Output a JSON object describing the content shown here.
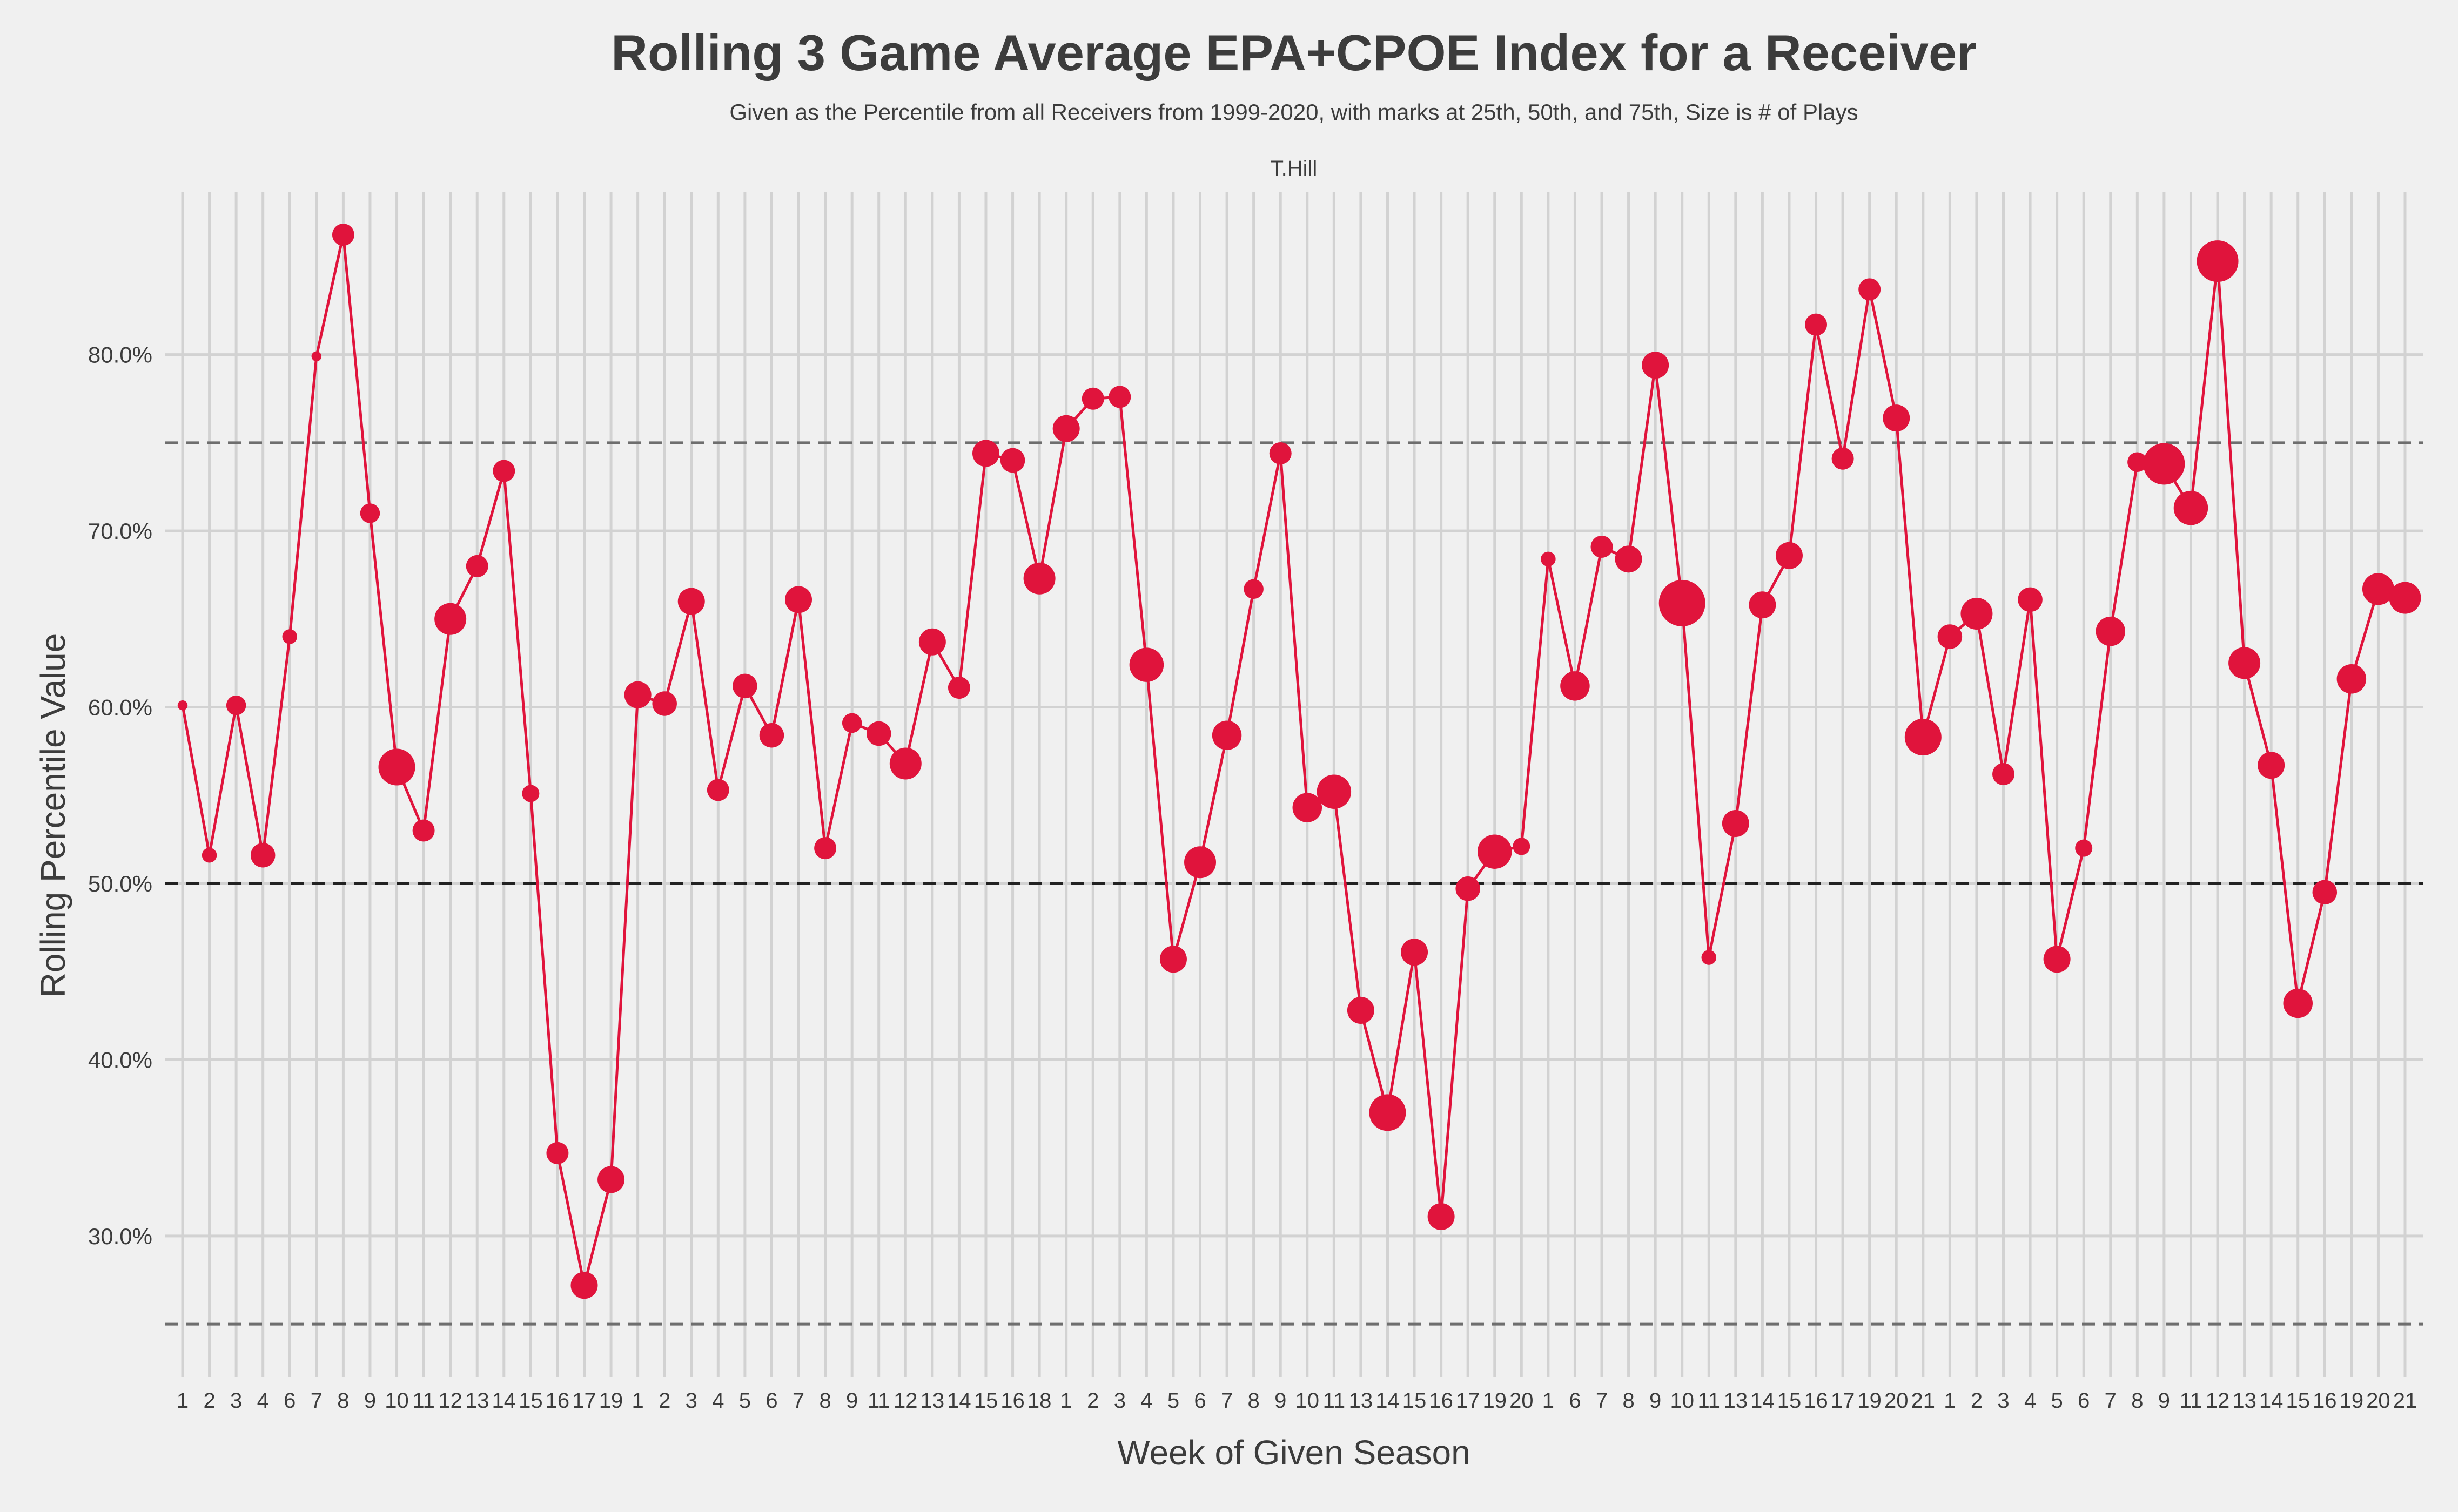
{
  "chart_data": {
    "type": "scatter",
    "title": "Rolling 3 Game Average EPA+CPOE Index for a Receiver",
    "subtitle": "Given as the Percentile from all Receivers from 1999-2020, with marks at 25th, 50th, and 75th, Size is # of Plays",
    "facet_label": "T.Hill",
    "xlabel": "Week of Given Season",
    "ylabel": "Rolling Percentile Value",
    "y_range": [
      0.22,
      0.897
    ],
    "y_ticks": [
      0.3,
      0.4,
      0.5,
      0.6,
      0.7,
      0.8
    ],
    "y_tick_labels": [
      "30.0%",
      "40.0%",
      "50.0%",
      "60.0%",
      "70.0%",
      "80.0%"
    ],
    "reference_lines": [
      0.25,
      0.5,
      0.75
    ],
    "grid": true,
    "colors": {
      "background": "#f0f0f0",
      "grid": "#d2d2d2",
      "series": "#e0143c",
      "reference_mid": "#222222",
      "reference_outer": "#6e6e6e",
      "text": "#3c3c3c"
    },
    "series": [
      {
        "x": [
          "1",
          "2",
          "3",
          "4",
          "6",
          "7",
          "8",
          "9",
          "10",
          "11",
          "12",
          "13",
          "14",
          "15",
          "16",
          "17",
          "19",
          "1",
          "2",
          "3",
          "4",
          "5",
          "6",
          "7",
          "8",
          "9",
          "11",
          "12",
          "13",
          "14",
          "15",
          "16",
          "18",
          "1",
          "2",
          "3",
          "4",
          "5",
          "6",
          "7",
          "8",
          "9",
          "10",
          "11",
          "13",
          "14",
          "15",
          "16",
          "17",
          "19",
          "20",
          "1",
          "6",
          "7",
          "8",
          "9",
          "10",
          "11",
          "13",
          "14",
          "15",
          "16",
          "17",
          "19",
          "20",
          "21",
          "1",
          "2",
          "3",
          "4",
          "5",
          "6",
          "7",
          "8",
          "9",
          "11",
          "12",
          "13",
          "14",
          "15",
          "16",
          "19",
          "20",
          "21"
        ],
        "y": [
          0.601,
          0.516,
          0.601,
          0.516,
          0.64,
          0.799,
          0.868,
          0.71,
          0.566,
          0.53,
          0.65,
          0.68,
          0.734,
          0.551,
          0.347,
          0.272,
          0.332,
          0.607,
          0.602,
          0.66,
          0.553,
          0.612,
          0.584,
          0.661,
          0.52,
          0.591,
          0.585,
          0.568,
          0.637,
          0.611,
          0.744,
          0.74,
          0.673,
          0.758,
          0.775,
          0.776,
          0.624,
          0.457,
          0.512,
          0.584,
          0.667,
          0.744,
          0.543,
          0.552,
          0.428,
          0.37,
          0.461,
          0.311,
          0.497,
          0.518,
          0.521,
          0.684,
          0.612,
          0.691,
          0.684,
          0.794,
          0.659,
          0.458,
          0.534,
          0.658,
          0.686,
          0.817,
          0.741,
          0.837,
          0.764,
          0.583,
          0.64,
          0.653,
          0.562,
          0.661,
          0.457,
          0.52,
          0.643,
          0.739,
          0.738,
          0.713,
          0.853,
          0.625,
          0.567,
          0.432,
          0.495,
          0.616,
          0.667,
          0.662
        ],
        "size": [
          0.5,
          1.5,
          2.5,
          3.5,
          1.5,
          0.5,
          3,
          2.5,
          6,
          3,
          5,
          3,
          3,
          2,
          3,
          4,
          4,
          4,
          3.5,
          4,
          3,
          3.5,
          3.5,
          4,
          3,
          2.5,
          3.5,
          5,
          4,
          3,
          4,
          3.5,
          5,
          4,
          3,
          3,
          5.5,
          4,
          5,
          4.5,
          2.5,
          3,
          4.5,
          5.5,
          4,
          6,
          4,
          4,
          3.5,
          5.5,
          2,
          1.5,
          4.5,
          3,
          4,
          4,
          8,
          1.5,
          4,
          4,
          4,
          3,
          3,
          3,
          4,
          6,
          3.5,
          5,
          3,
          3.5,
          4,
          2,
          4.5,
          2.5,
          7,
          5.5,
          7,
          5,
          4,
          4.5,
          3.5,
          4.5,
          5,
          5
        ]
      }
    ]
  }
}
